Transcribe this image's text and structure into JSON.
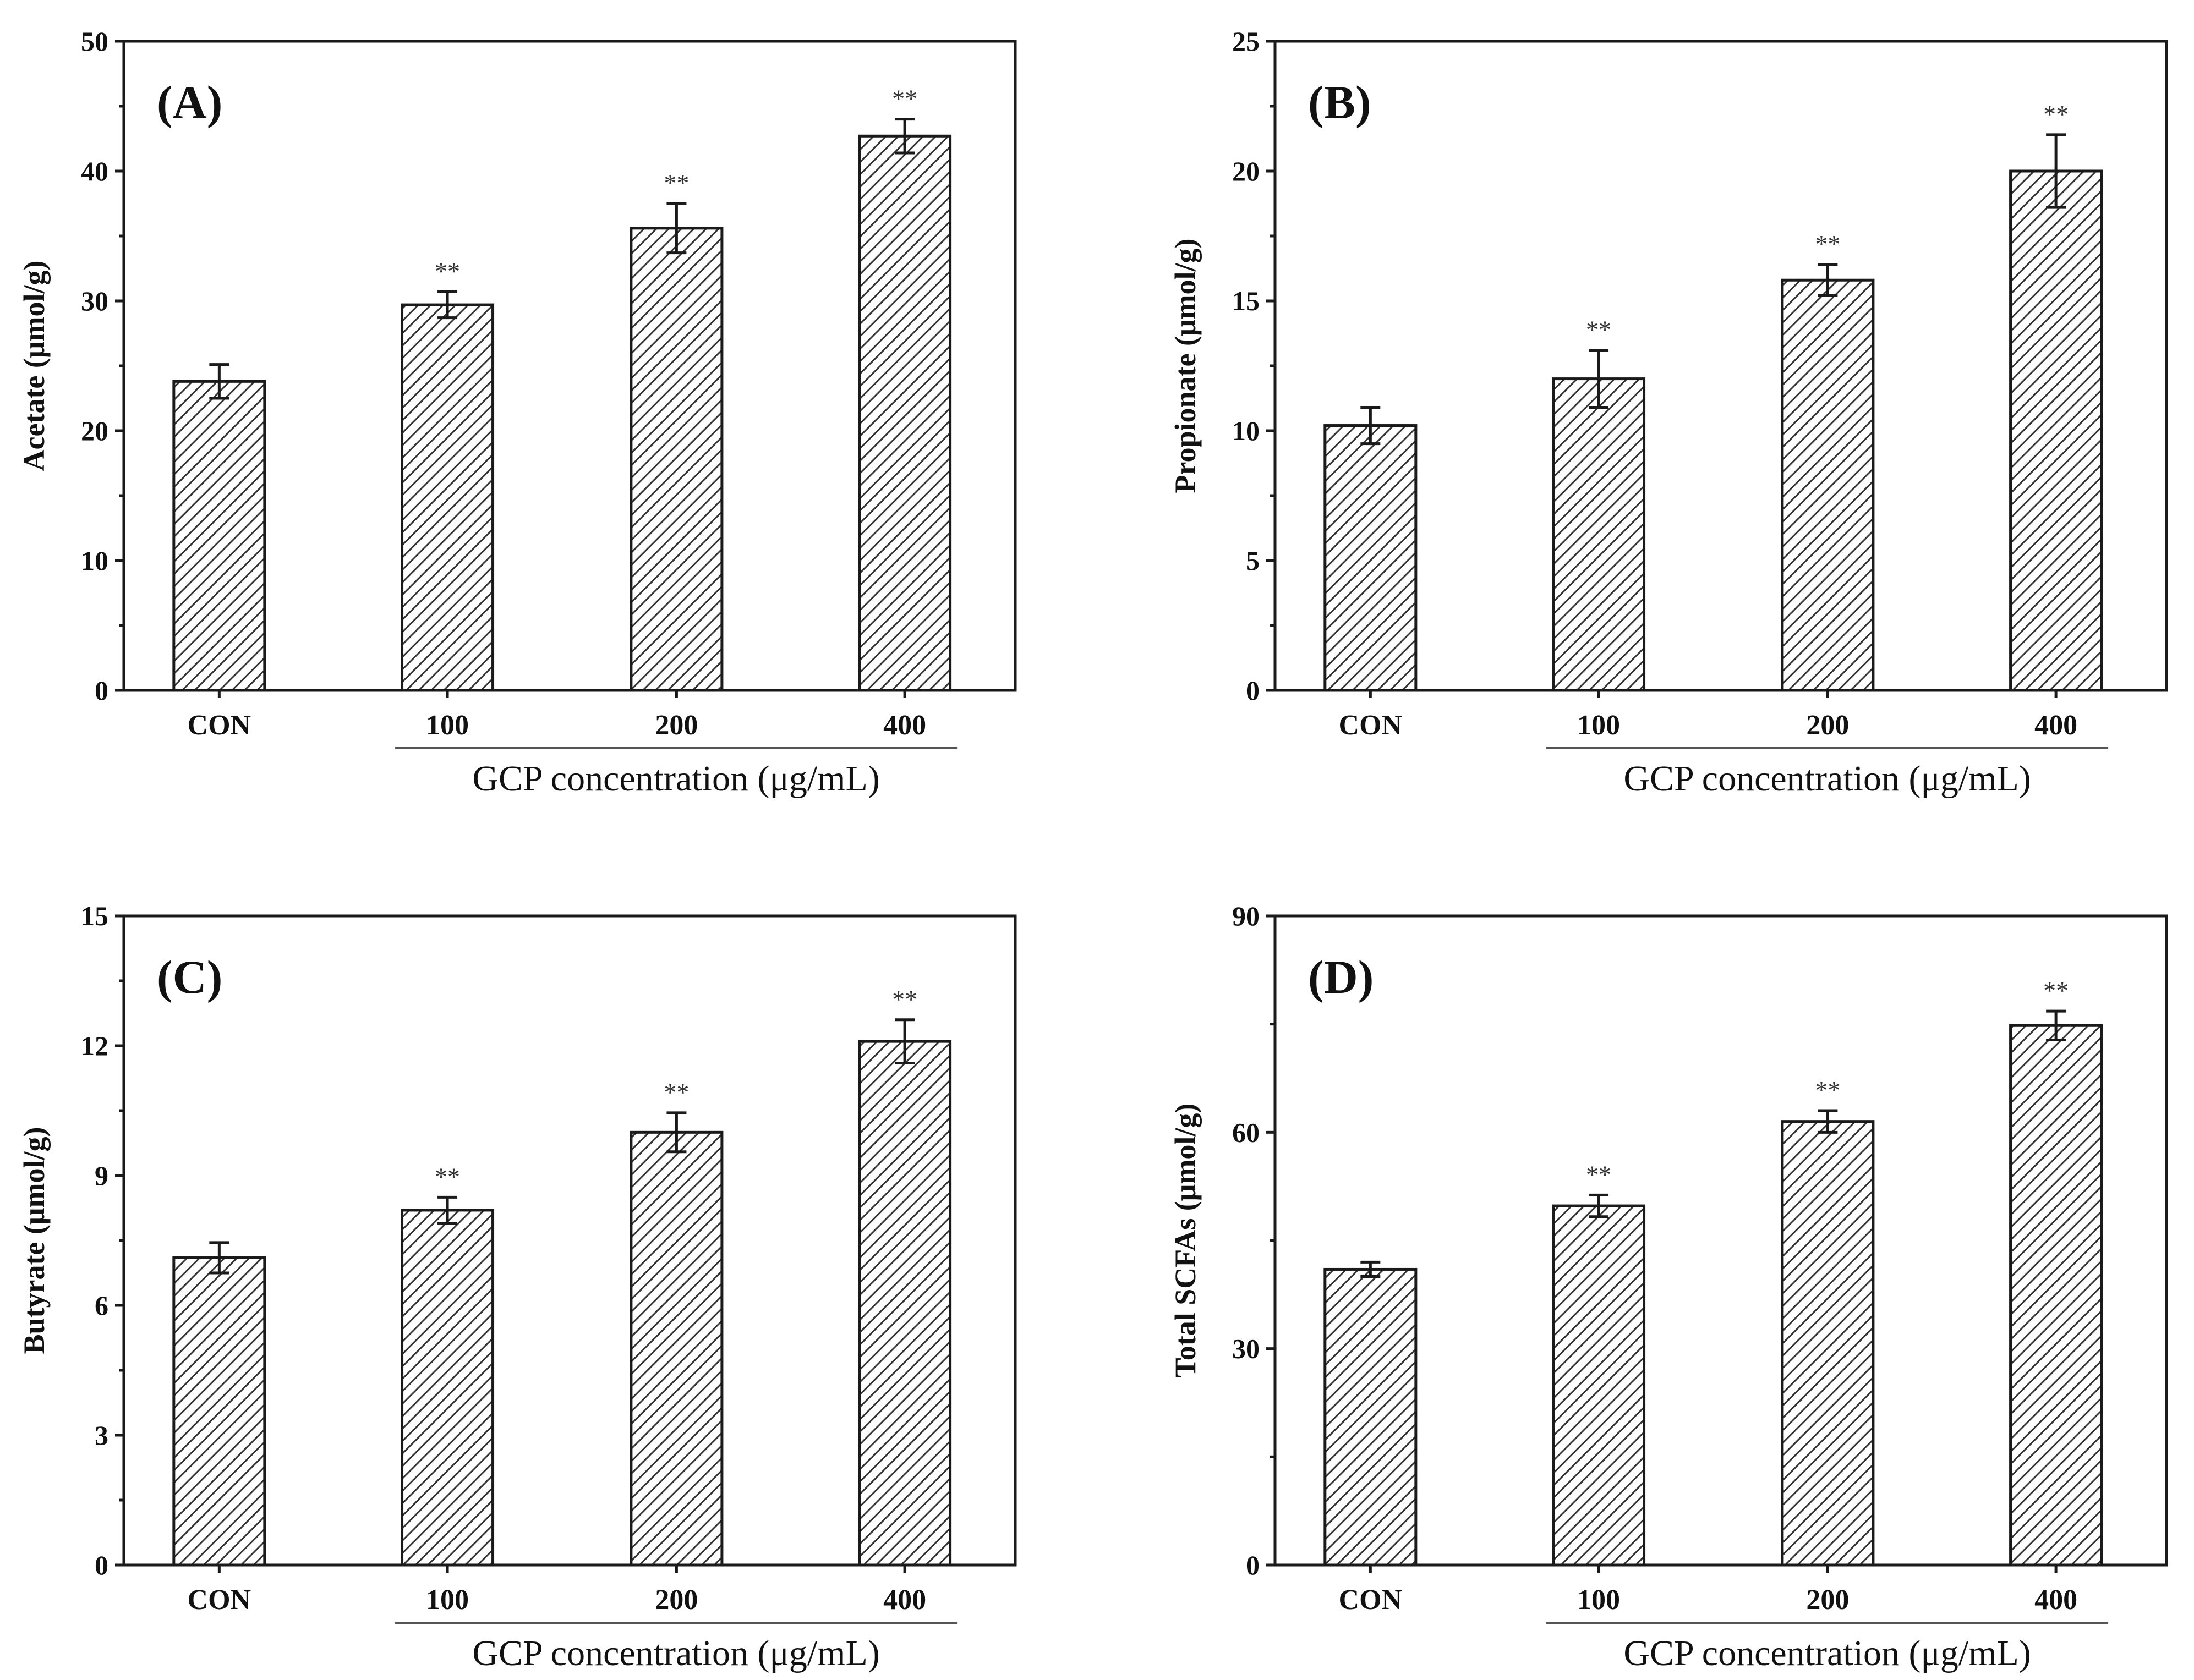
{
  "chart_data": [
    {
      "type": "bar",
      "panel_label": "(A)",
      "ylabel": "Acetate (μmol/g)",
      "xlabel": "GCP concentration (μg/mL)",
      "categories": [
        "CON",
        "100",
        "200",
        "400"
      ],
      "values": [
        23.8,
        29.7,
        35.6,
        42.7
      ],
      "errors": [
        1.3,
        1.0,
        1.9,
        1.3
      ],
      "significance": [
        "",
        "**",
        "**",
        "**"
      ],
      "ylim": [
        0,
        50
      ],
      "yticks": [
        "0",
        "10",
        "20",
        "30",
        "40",
        "50"
      ]
    },
    {
      "type": "bar",
      "panel_label": "(B)",
      "ylabel": "Propionate (μmol/g)",
      "xlabel": "GCP concentration (μg/mL)",
      "categories": [
        "CON",
        "100",
        "200",
        "400"
      ],
      "values": [
        10.2,
        12.0,
        15.8,
        20.0
      ],
      "errors": [
        0.7,
        1.1,
        0.6,
        1.4
      ],
      "significance": [
        "",
        "**",
        "**",
        "**"
      ],
      "ylim": [
        0,
        25
      ],
      "yticks": [
        "0",
        "5",
        "10",
        "15",
        "20",
        "25"
      ]
    },
    {
      "type": "bar",
      "panel_label": "(C)",
      "ylabel": "Butyrate (μmol/g)",
      "xlabel": "GCP concentration (μg/mL)",
      "categories": [
        "CON",
        "100",
        "200",
        "400"
      ],
      "values": [
        7.1,
        8.2,
        10.0,
        12.1
      ],
      "errors": [
        0.35,
        0.3,
        0.45,
        0.5
      ],
      "significance": [
        "",
        "**",
        "**",
        "**"
      ],
      "ylim": [
        0,
        15
      ],
      "yticks": [
        "0",
        "3",
        "6",
        "9",
        "12",
        "15"
      ]
    },
    {
      "type": "bar",
      "panel_label": "(D)",
      "ylabel": "Total SCFAs (μmol/g)",
      "xlabel": "GCP concentration (μg/mL)",
      "categories": [
        "CON",
        "100",
        "200",
        "400"
      ],
      "values": [
        41.0,
        49.8,
        61.5,
        74.8
      ],
      "errors": [
        1.0,
        1.5,
        1.5,
        2.0
      ],
      "significance": [
        "",
        "**",
        "**",
        "**"
      ],
      "ylim": [
        0,
        90
      ],
      "yticks": [
        "0",
        "30",
        "60",
        "90"
      ]
    }
  ],
  "colors": {
    "bar_fill_bg": "#ffffff",
    "hatch": "#333333",
    "axis": "#1a1a1a"
  }
}
